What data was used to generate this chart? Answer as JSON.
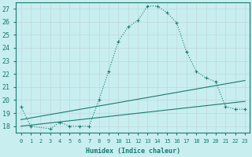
{
  "xlabel": "Humidex (Indice chaleur)",
  "ylabel": "",
  "bg_color": "#c8eef0",
  "grid_color": "#d4e8e8",
  "line_color": "#1a7a6e",
  "xlim": [
    -0.5,
    23.5
  ],
  "ylim": [
    17.5,
    27.5
  ],
  "yticks": [
    18,
    19,
    20,
    21,
    22,
    23,
    24,
    25,
    26,
    27
  ],
  "xticks": [
    0,
    1,
    2,
    3,
    4,
    5,
    6,
    7,
    8,
    9,
    10,
    11,
    12,
    13,
    14,
    15,
    16,
    17,
    18,
    19,
    20,
    21,
    22,
    23
  ],
  "series1_x": [
    0,
    1,
    3,
    4,
    5,
    6,
    7,
    8,
    9,
    10,
    11,
    12,
    13,
    14,
    15,
    16,
    17,
    18,
    19,
    20,
    21,
    22,
    23
  ],
  "series1_y": [
    19.5,
    18.0,
    17.8,
    18.3,
    18.0,
    18.0,
    18.0,
    20.0,
    22.2,
    24.5,
    25.6,
    26.1,
    27.2,
    27.2,
    26.7,
    25.9,
    23.7,
    22.2,
    21.7,
    21.4,
    19.5,
    19.3,
    19.3
  ],
  "series2_x": [
    0,
    23
  ],
  "series2_y": [
    18.5,
    21.5
  ],
  "series3_x": [
    0,
    23
  ],
  "series3_y": [
    18.0,
    19.9
  ]
}
